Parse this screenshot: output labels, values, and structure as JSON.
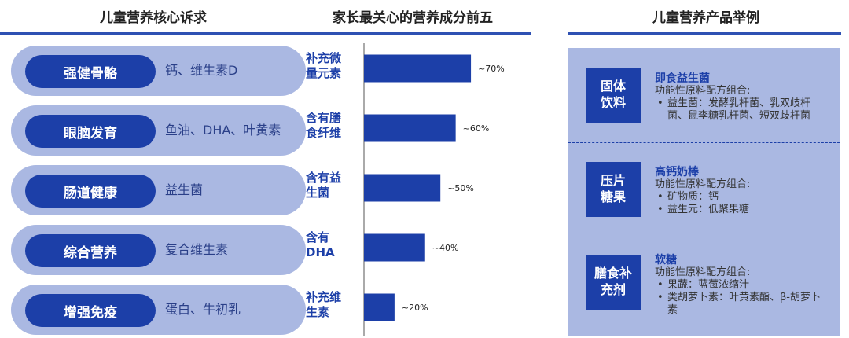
{
  "sections": {
    "needs_title": "儿童营养核心诉求",
    "chart_title": "家长最关心的营养成分前五",
    "products_title": "儿童营养产品举例"
  },
  "needs": [
    {
      "label": "强健骨骼",
      "desc": "钙、维生素D"
    },
    {
      "label": "眼脑发育",
      "desc": "鱼油、DHA、叶黄素"
    },
    {
      "label": "肠道健康",
      "desc": "益生菌"
    },
    {
      "label": "综合营养",
      "desc": "复合维生素"
    },
    {
      "label": "增强免疫",
      "desc": "蛋白、牛初乳"
    }
  ],
  "chart_data": {
    "type": "bar",
    "orientation": "horizontal",
    "title": "家长最关心的营养成分前五",
    "categories": [
      "补充微量元素",
      "含有膳食纤维",
      "含有益生菌",
      "含有DHA",
      "补充维生素"
    ],
    "category_lines": [
      [
        "补充微",
        "量元素"
      ],
      [
        "含有膳",
        "食纤维"
      ],
      [
        "含有益",
        "生菌"
      ],
      [
        "含有",
        "DHA"
      ],
      [
        "补充维",
        "生素"
      ]
    ],
    "values": [
      70,
      60,
      50,
      40,
      20
    ],
    "value_labels": [
      "~70%",
      "~60%",
      "~50%",
      "~40%",
      "~20%"
    ],
    "unit": "%",
    "xlim": [
      0,
      100
    ],
    "bar_color": "#1c3fa8"
  },
  "products": [
    {
      "category": "固体\n饮料",
      "name": "即食益生菌",
      "formula_label": "功能性原料配方组合:",
      "items": [
        "益生菌：发酵乳杆菌、乳双歧杆菌、鼠李糖乳杆菌、短双歧杆菌"
      ]
    },
    {
      "category": "压片\n糖果",
      "name": "高钙奶棒",
      "formula_label": "功能性原料配方组合:",
      "items": [
        "矿物质：钙",
        "益生元：低聚果糖"
      ]
    },
    {
      "category": "膳食补\n充剂",
      "name": "软糖",
      "formula_label": "功能性原料配方组合:",
      "items": [
        "果蔬：蓝莓浓缩汁",
        "类胡萝卜素：叶黄素酯、β-胡萝卜素"
      ]
    }
  ],
  "colors": {
    "accent": "#1c3fa8",
    "panel": "#aab8e2",
    "rule": "#2f51b3"
  }
}
